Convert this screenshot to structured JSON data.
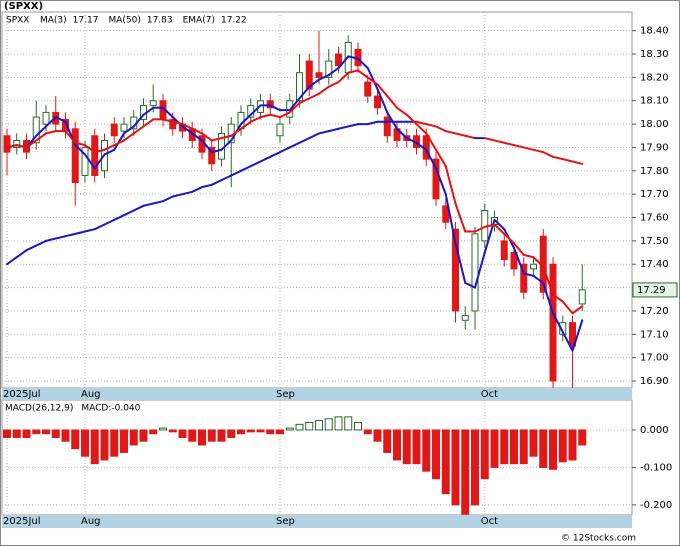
{
  "chart_data": [
    {
      "type": "candlestick",
      "title": "(SPXX)",
      "symbol": "SPXX",
      "symbol_color": "#1a8a1a",
      "categories": [
        "2025Jul",
        null,
        null,
        null,
        null,
        null,
        null,
        null,
        "Aug",
        null,
        null,
        null,
        null,
        null,
        null,
        null,
        null,
        null,
        null,
        null,
        null,
        null,
        null,
        null,
        null,
        null,
        null,
        null,
        "Sep",
        null,
        null,
        null,
        null,
        null,
        null,
        null,
        null,
        null,
        null,
        null,
        null,
        null,
        null,
        null,
        null,
        null,
        null,
        null,
        null,
        "Oct",
        null,
        null,
        null,
        null,
        null,
        null,
        null,
        null,
        null,
        null
      ],
      "open": [
        17.95,
        17.9,
        17.93,
        17.92,
        18.0,
        18.05,
        18.02,
        17.98,
        17.78,
        17.95,
        17.8,
        18.0,
        17.97,
        17.98,
        18.02,
        18.08,
        18.1,
        18.02,
        18.0,
        17.98,
        17.95,
        17.9,
        17.85,
        17.92,
        17.98,
        18.03,
        18.05,
        18.1,
        17.95,
        18.03,
        18.1,
        18.27,
        18.22,
        18.2,
        18.3,
        18.22,
        18.32,
        18.18,
        18.12,
        18.03,
        17.98,
        17.95,
        17.95,
        17.95,
        17.85,
        17.65,
        17.55,
        17.16,
        17.2,
        17.5,
        17.57,
        17.5,
        17.45,
        17.4,
        17.38,
        17.52,
        17.4,
        17.1,
        17.15,
        17.23
      ],
      "high": [
        17.98,
        17.96,
        17.96,
        18.1,
        18.08,
        18.12,
        18.05,
        18.01,
        17.93,
        17.98,
        17.96,
        18.03,
        18.03,
        18.06,
        18.11,
        18.17,
        18.13,
        18.05,
        18.03,
        18.01,
        17.98,
        17.93,
        17.99,
        18.03,
        18.08,
        18.11,
        18.13,
        18.13,
        18.03,
        18.13,
        18.3,
        18.3,
        18.4,
        18.32,
        18.33,
        18.38,
        18.35,
        18.21,
        18.15,
        18.06,
        18.01,
        17.98,
        17.98,
        17.98,
        17.88,
        17.68,
        17.58,
        17.22,
        17.56,
        17.66,
        17.63,
        17.53,
        17.48,
        17.43,
        17.43,
        17.55,
        17.43,
        17.18,
        17.18,
        17.4
      ],
      "low": [
        17.78,
        17.87,
        17.85,
        17.89,
        17.97,
        17.97,
        17.94,
        17.65,
        17.75,
        17.75,
        17.77,
        17.92,
        17.94,
        17.95,
        17.99,
        18.05,
        17.99,
        17.95,
        17.94,
        17.9,
        17.85,
        17.8,
        17.82,
        17.73,
        17.95,
        18.0,
        18.02,
        18.04,
        17.92,
        18.0,
        18.07,
        18.12,
        18.17,
        18.17,
        18.22,
        18.19,
        18.22,
        18.09,
        18.04,
        17.92,
        17.9,
        17.9,
        17.87,
        17.82,
        17.65,
        17.55,
        17.15,
        17.12,
        17.12,
        17.47,
        17.54,
        17.39,
        17.35,
        17.25,
        17.35,
        17.25,
        16.87,
        17.07,
        16.87,
        17.2
      ],
      "close": [
        17.88,
        17.93,
        17.88,
        18.03,
        18.05,
        18.0,
        17.97,
        17.75,
        17.9,
        17.78,
        17.93,
        17.95,
        18.0,
        18.03,
        18.08,
        18.1,
        18.02,
        17.98,
        17.97,
        17.93,
        17.88,
        17.83,
        17.96,
        18.0,
        18.05,
        18.08,
        18.1,
        18.07,
        18.0,
        18.1,
        18.22,
        18.15,
        18.2,
        18.27,
        18.25,
        18.35,
        18.25,
        18.12,
        18.07,
        17.95,
        17.93,
        17.93,
        17.9,
        17.85,
        17.68,
        17.58,
        17.2,
        17.18,
        17.53,
        17.63,
        17.6,
        17.42,
        17.38,
        17.28,
        17.4,
        17.28,
        16.9,
        17.15,
        17.05,
        17.29
      ],
      "up_color": "#2a6a2a",
      "down_color": "#e01818",
      "lines": [
        {
          "name": "MA(3)",
          "last": 17.17,
          "color": "#1818c8",
          "values": [
            17.9,
            17.91,
            17.9,
            17.95,
            17.99,
            18.03,
            18.01,
            17.91,
            17.87,
            17.81,
            17.87,
            17.89,
            17.96,
            17.99,
            18.04,
            18.07,
            18.07,
            18.03,
            17.99,
            17.96,
            17.93,
            17.88,
            17.89,
            17.93,
            18.0,
            18.04,
            18.08,
            18.08,
            18.06,
            18.06,
            18.11,
            18.16,
            18.19,
            18.21,
            18.24,
            18.29,
            18.28,
            18.24,
            18.15,
            18.05,
            17.98,
            17.94,
            17.92,
            17.89,
            17.81,
            17.7,
            17.49,
            17.32,
            17.3,
            17.45,
            17.59,
            17.55,
            17.47,
            17.36,
            17.35,
            17.32,
            17.19,
            17.11,
            17.03,
            17.16
          ]
        },
        {
          "name": "MA(50)",
          "last": 17.83,
          "color": "#1818c8",
          "down_color": "#e01818",
          "values": [
            17.4,
            17.43,
            17.46,
            17.48,
            17.5,
            17.51,
            17.52,
            17.53,
            17.54,
            17.55,
            17.57,
            17.59,
            17.61,
            17.63,
            17.65,
            17.66,
            17.67,
            17.69,
            17.7,
            17.71,
            17.73,
            17.74,
            17.76,
            17.78,
            17.8,
            17.82,
            17.84,
            17.86,
            17.88,
            17.9,
            17.92,
            17.94,
            17.96,
            17.97,
            17.98,
            17.99,
            18.0,
            18.0,
            18.01,
            18.01,
            18.01,
            18.01,
            18.01,
            18.0,
            17.99,
            17.97,
            17.96,
            17.95,
            17.94,
            17.94,
            17.93,
            17.92,
            17.91,
            17.9,
            17.89,
            17.88,
            17.86,
            17.85,
            17.84,
            17.83
          ]
        },
        {
          "name": "EMA(7)",
          "last": 17.22,
          "color": "#e81010",
          "values": [
            17.9,
            17.91,
            17.9,
            17.93,
            17.96,
            17.97,
            17.97,
            17.92,
            17.91,
            17.88,
            17.89,
            17.91,
            17.93,
            17.96,
            17.99,
            18.02,
            18.02,
            18.01,
            18.0,
            17.98,
            17.96,
            17.93,
            17.94,
            17.95,
            17.98,
            18.01,
            18.03,
            18.04,
            18.03,
            18.05,
            18.09,
            18.11,
            18.13,
            18.16,
            18.18,
            18.22,
            18.23,
            18.2,
            18.17,
            18.12,
            18.07,
            18.04,
            18.0,
            17.96,
            17.89,
            17.82,
            17.66,
            17.54,
            17.54,
            17.56,
            17.57,
            17.53,
            17.49,
            17.44,
            17.43,
            17.39,
            17.27,
            17.24,
            17.19,
            17.22
          ]
        }
      ],
      "ylim": [
        16.87,
        18.48
      ],
      "yticks": [
        {
          "value": 16.9,
          "label": "16.90"
        },
        {
          "value": 17,
          "label": "17.00"
        },
        {
          "value": 17.1,
          "label": "17.10"
        },
        {
          "value": 17.2,
          "label": "17.20"
        },
        {
          "value": 17.3,
          "label": "17.30"
        },
        {
          "value": 17.4,
          "label": "17.40"
        },
        {
          "value": 17.5,
          "label": "17.50"
        },
        {
          "value": 17.6,
          "label": "17.60"
        },
        {
          "value": 17.7,
          "label": "17.70"
        },
        {
          "value": 17.8,
          "label": "17.80"
        },
        {
          "value": 17.9,
          "label": "17.90"
        },
        {
          "value": 18,
          "label": "18.00"
        },
        {
          "value": 18.1,
          "label": "18.10"
        },
        {
          "value": 18.2,
          "label": "18.20"
        },
        {
          "value": 18.3,
          "label": "18.30"
        },
        {
          "value": 18.4,
          "label": "18.40"
        }
      ],
      "grid": true
    },
    {
      "type": "bar",
      "name": "MACD(26,12,9)",
      "legend": "MACD:-0.040",
      "legend_color": "#1818c8",
      "values": [
        -0.02,
        -0.02,
        -0.02,
        -0.01,
        -0.01,
        -0.02,
        -0.03,
        -0.05,
        -0.07,
        -0.09,
        -0.08,
        -0.07,
        -0.06,
        -0.04,
        -0.03,
        -0.01,
        0.005,
        -0.005,
        -0.02,
        -0.03,
        -0.04,
        -0.03,
        -0.03,
        -0.02,
        -0.01,
        -0.005,
        -0.005,
        -0.01,
        -0.01,
        0.005,
        0.015,
        0.02,
        0.025,
        0.03,
        0.035,
        0.035,
        0.02,
        -0.01,
        -0.03,
        -0.06,
        -0.08,
        -0.09,
        -0.09,
        -0.11,
        -0.13,
        -0.17,
        -0.2,
        -0.225,
        -0.2,
        -0.13,
        -0.1,
        -0.09,
        -0.09,
        -0.09,
        -0.07,
        -0.1,
        -0.105,
        -0.085,
        -0.08,
        -0.04
      ],
      "up_color": "#2a6a2a",
      "down_color": "#e01818",
      "ylim": [
        -0.227,
        0.08
      ],
      "yticks": [
        {
          "value": 0,
          "label": "0.000"
        },
        {
          "value": -0.1,
          "label": "-0.100"
        },
        {
          "value": -0.2,
          "label": "-0.200"
        }
      ],
      "grid": true
    },
    {
      "type": "watermark",
      "text": "© 12Stocks.com"
    }
  ]
}
